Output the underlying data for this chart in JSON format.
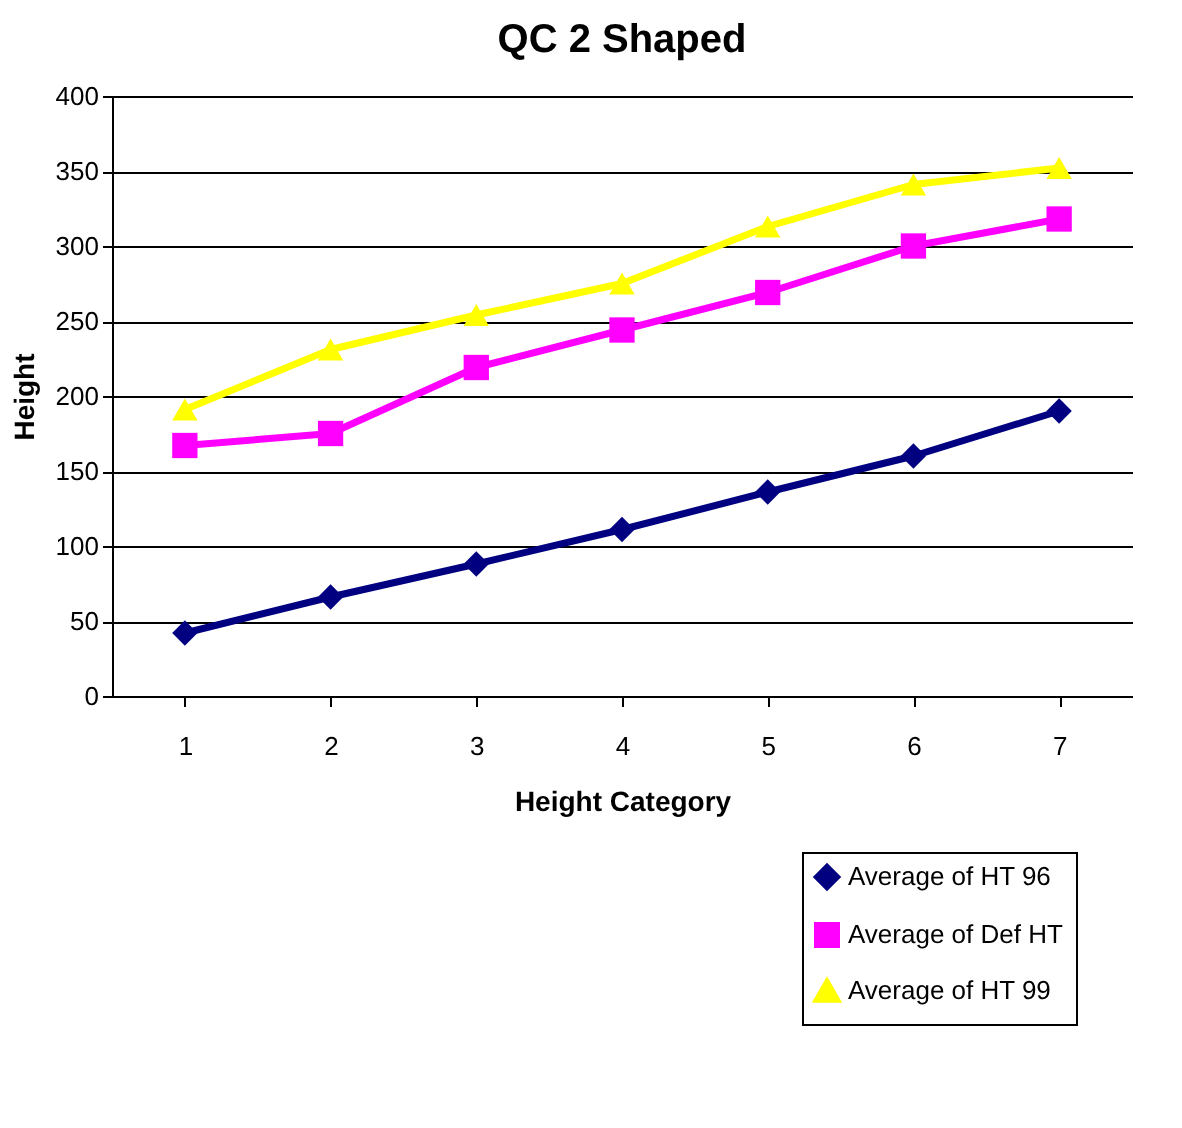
{
  "chart_data": {
    "type": "line",
    "title": "QC 2  Shaped",
    "xlabel": "Height Category",
    "ylabel": "Height",
    "categories": [
      "1",
      "2",
      "3",
      "4",
      "5",
      "6",
      "7"
    ],
    "series": [
      {
        "name": "Average of HT 96",
        "color": "#000080",
        "marker": "diamond",
        "values": [
          42,
          66,
          88,
          111,
          136,
          160,
          190
        ]
      },
      {
        "name": "Average of Def HT",
        "color": "#ff00ff",
        "marker": "square",
        "values": [
          167,
          175,
          219,
          244,
          269,
          300,
          318
        ]
      },
      {
        "name": "Average of HT 99",
        "color": "#ffff00",
        "marker": "triangle",
        "values": [
          191,
          231,
          254,
          275,
          313,
          341,
          352
        ]
      }
    ],
    "ylim": [
      0,
      400
    ],
    "yticks": [
      0,
      50,
      100,
      150,
      200,
      250,
      300,
      350,
      400
    ],
    "grid": "y",
    "legend": "bottom right",
    "line_style": "solid"
  }
}
